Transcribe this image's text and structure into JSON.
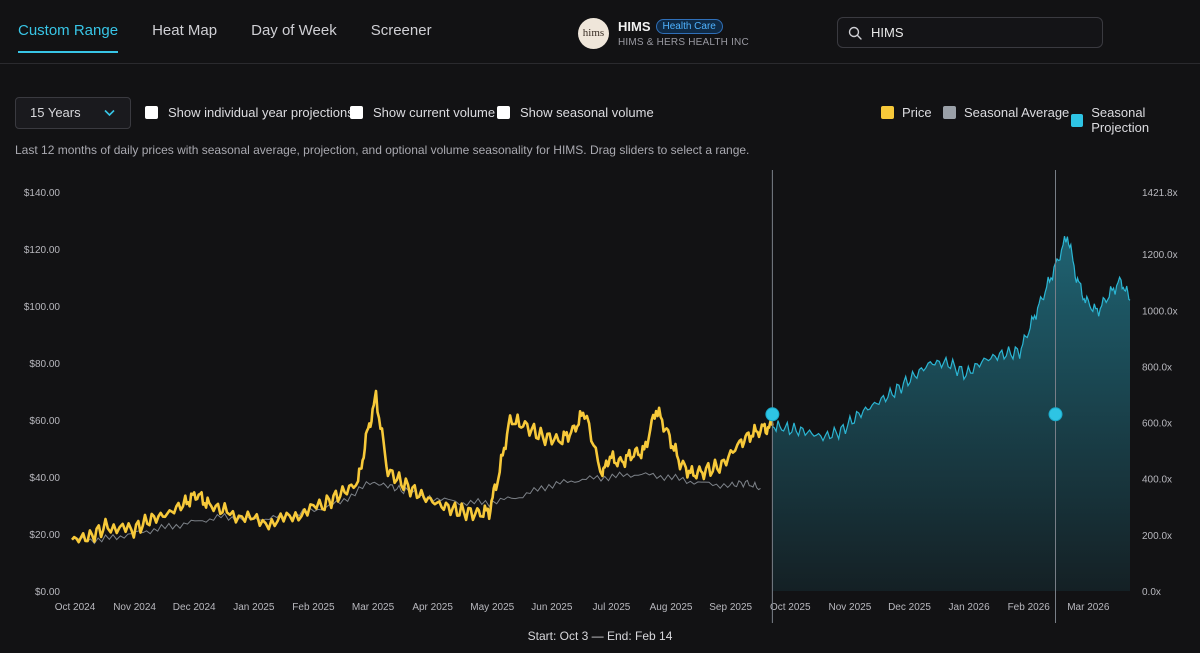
{
  "tabs": [
    {
      "label": "Custom Range",
      "active": true
    },
    {
      "label": "Heat Map",
      "active": false
    },
    {
      "label": "Day of Week",
      "active": false
    },
    {
      "label": "Screener",
      "active": false
    }
  ],
  "ticker": {
    "logo_text": "hims",
    "symbol": "HIMS",
    "sector_badge": "Health Care",
    "company": "HIMS & HERS HEALTH INC"
  },
  "search": {
    "value": "HIMS",
    "icon": "search-icon"
  },
  "controls": {
    "range_select": "15 Years",
    "checkboxes": [
      {
        "label": "Show individual year projections",
        "checked": false
      },
      {
        "label": "Show current volume",
        "checked": false
      },
      {
        "label": "Show seasonal volume",
        "checked": false
      }
    ]
  },
  "legend": [
    {
      "label": "Price",
      "color": "#f7c93a"
    },
    {
      "label": "Seasonal Average",
      "color": "#9aa0a8"
    },
    {
      "label": "Seasonal Projection",
      "color": "#2ec4e4"
    }
  ],
  "description": "Last 12 months of daily prices with seasonal average, projection, and optional volume seasonality for HIMS. Drag sliders to select a range.",
  "chart_data": {
    "type": "line",
    "x_start_label": "Oct 2024",
    "x_ticks": [
      "Oct 2024",
      "Nov 2024",
      "Dec 2024",
      "Jan 2025",
      "Feb 2025",
      "Mar 2025",
      "Apr 2025",
      "May 2025",
      "Jun 2025",
      "Jul 2025",
      "Aug 2025",
      "Sep 2025",
      "Oct 2025",
      "Nov 2025",
      "Dec 2025",
      "Jan 2026",
      "Feb 2026",
      "Mar 2026"
    ],
    "y_left_ticks": [
      "$0.00",
      "$20.00",
      "$40.00",
      "$60.00",
      "$80.00",
      "$100.00",
      "$120.00",
      "$140.00"
    ],
    "y_left_range": [
      0,
      140
    ],
    "y_right_ticks": [
      "0.0x",
      "200.0x",
      "400.0x",
      "600.0x",
      "800.0x",
      "1000.0x",
      "1200.0x",
      "1421.8x"
    ],
    "y_right_range": [
      0,
      1421.8
    ],
    "x_range_months": [
      0,
      17.8
    ],
    "series": [
      {
        "name": "Price",
        "color": "#f7c93a",
        "x": [
          0,
          0.3,
          0.6,
          1.0,
          1.3,
          1.6,
          1.9,
          2.1,
          2.3,
          2.6,
          3.0,
          3.4,
          3.8,
          4.2,
          4.5,
          4.8,
          4.95,
          5.1,
          5.3,
          5.6,
          5.9,
          6.2,
          6.5,
          6.8,
          7.0,
          7.15,
          7.35,
          7.6,
          7.9,
          8.2,
          8.4,
          8.6,
          8.9,
          9.0,
          9.2,
          9.4,
          9.6,
          9.8,
          10.0,
          10.2,
          10.4,
          10.6,
          10.9,
          11.2,
          11.4,
          11.6,
          11.75
        ],
        "values": [
          18,
          19,
          23,
          21,
          25,
          27,
          31,
          34,
          30,
          28,
          25,
          24,
          27,
          30,
          34,
          38,
          55,
          68,
          42,
          37,
          33,
          30,
          28,
          27,
          28,
          40,
          60,
          58,
          54,
          53,
          56,
          63,
          40,
          47,
          45,
          48,
          49,
          64,
          55,
          45,
          41,
          42,
          44,
          52,
          55,
          57,
          58
        ]
      },
      {
        "name": "Seasonal Average",
        "color": "#8a8f96",
        "x": [
          0,
          0.5,
          1.0,
          1.5,
          2.0,
          2.5,
          3.0,
          3.5,
          4.0,
          4.5,
          5.0,
          5.3,
          5.6,
          6.0,
          6.5,
          7.0,
          7.5,
          8.0,
          8.5,
          9.0,
          9.5,
          10.0,
          10.5,
          11.0,
          11.3,
          11.55
        ],
        "values": [
          18,
          18,
          20,
          22,
          24,
          26,
          25,
          26,
          28,
          31,
          38,
          37,
          35,
          33,
          31,
          31,
          33,
          37,
          39,
          40,
          41,
          40,
          38,
          37,
          38,
          36
        ]
      },
      {
        "name": "Seasonal Projection",
        "color": "#2ec4e4",
        "x": [
          11.75,
          12.0,
          12.3,
          12.6,
          12.9,
          13.2,
          13.5,
          13.8,
          14.1,
          14.4,
          14.7,
          15.0,
          15.3,
          15.6,
          15.9,
          16.1,
          16.3,
          16.5,
          16.7,
          16.85,
          17.0,
          17.2,
          17.4,
          17.6,
          17.75
        ],
        "values": [
          58,
          57,
          56,
          54,
          56,
          62,
          66,
          70,
          75,
          80,
          80,
          76,
          81,
          83,
          84,
          94,
          104,
          114,
          125,
          110,
          102,
          98,
          104,
          109,
          102
        ]
      }
    ],
    "slider_x_months": [
      11.75,
      16.5
    ]
  },
  "footer": {
    "start_text": "Start: Oct 3 —",
    "end_text": "End: Feb 14"
  }
}
